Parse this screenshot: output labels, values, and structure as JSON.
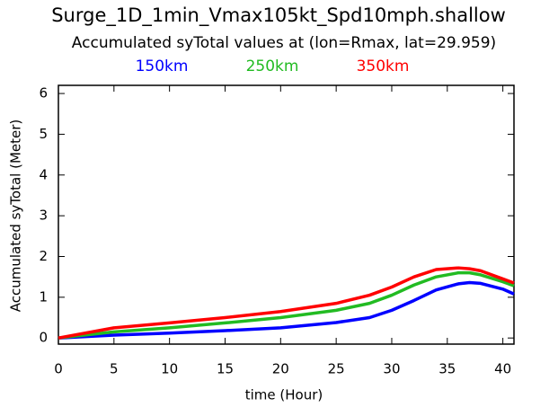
{
  "chart_data": {
    "type": "line",
    "title": "Surge_1D_1min_Vmax105kt_Spd10mph.shallow",
    "subtitle": "Accumulated syTotal values at (lon=Rmax, lat=29.959)",
    "x_label": "time (Hour)",
    "y_label": "Accumulated syTotal (Meter)",
    "x": [
      0,
      5,
      10,
      15,
      20,
      25,
      28,
      30,
      32,
      34,
      36,
      37,
      38,
      40,
      41
    ],
    "series": [
      {
        "name": "150km",
        "color": "#0000ff",
        "values": [
          0,
          0.07,
          0.12,
          0.18,
          0.25,
          0.38,
          0.5,
          0.68,
          0.92,
          1.18,
          1.33,
          1.36,
          1.34,
          1.2,
          1.08
        ]
      },
      {
        "name": "250km",
        "color": "#22bb22",
        "values": [
          0,
          0.15,
          0.25,
          0.37,
          0.5,
          0.68,
          0.85,
          1.05,
          1.3,
          1.5,
          1.6,
          1.6,
          1.55,
          1.38,
          1.28
        ]
      },
      {
        "name": "350km",
        "color": "#ff0000",
        "values": [
          0,
          0.25,
          0.37,
          0.5,
          0.65,
          0.85,
          1.05,
          1.25,
          1.5,
          1.68,
          1.72,
          1.7,
          1.65,
          1.45,
          1.35
        ]
      }
    ],
    "xlim": [
      0,
      41
    ],
    "xticks": [
      0,
      5,
      10,
      15,
      20,
      25,
      30,
      35,
      40
    ],
    "ylim": [
      -0.15,
      6.2
    ],
    "yticks": [
      0,
      1,
      2,
      3,
      4,
      5,
      6
    ]
  }
}
